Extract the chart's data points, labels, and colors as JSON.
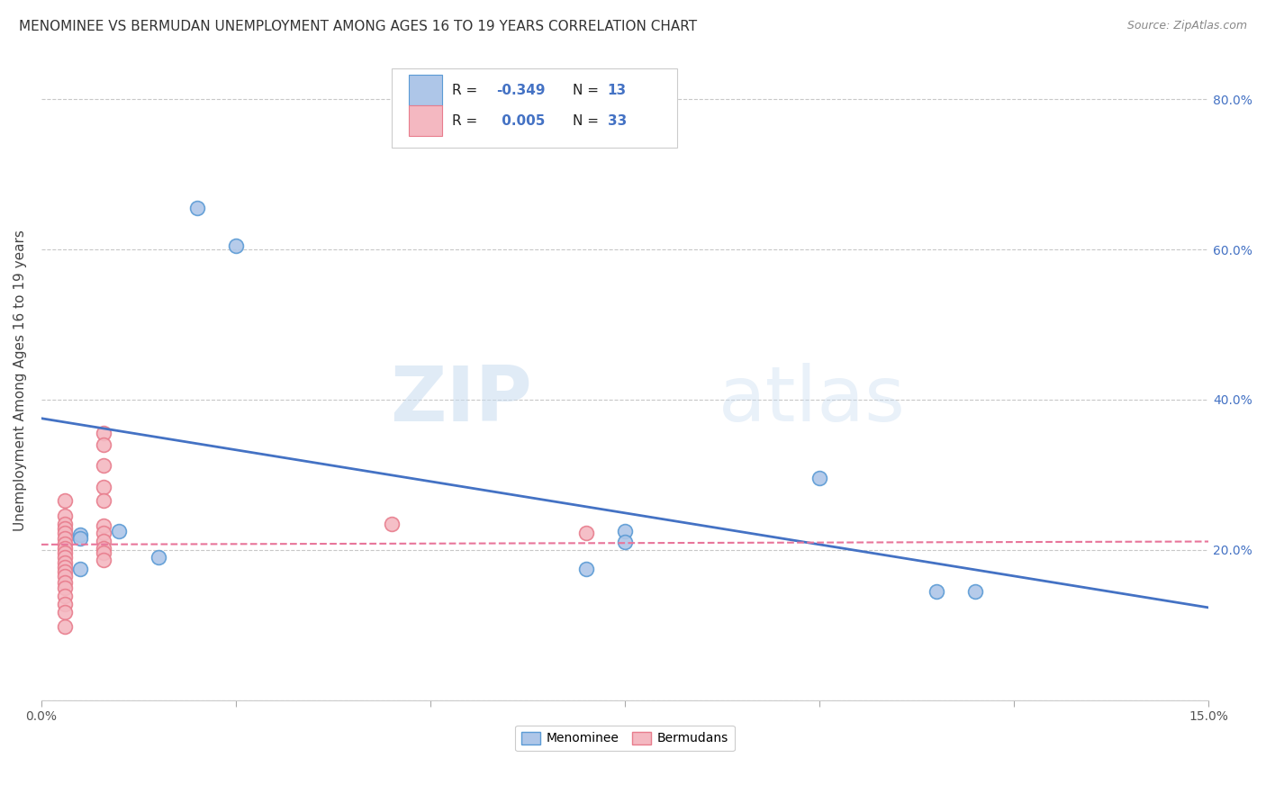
{
  "title": "MENOMINEE VS BERMUDAN UNEMPLOYMENT AMONG AGES 16 TO 19 YEARS CORRELATION CHART",
  "source": "Source: ZipAtlas.com",
  "ylabel": "Unemployment Among Ages 16 to 19 years",
  "xlim": [
    0.0,
    0.15
  ],
  "ylim": [
    0.0,
    0.85
  ],
  "menominee_x": [
    0.01,
    0.015,
    0.02,
    0.025,
    0.005,
    0.005,
    0.005,
    0.07,
    0.075,
    0.1,
    0.115,
    0.075,
    0.12
  ],
  "menominee_y": [
    0.225,
    0.19,
    0.655,
    0.605,
    0.22,
    0.215,
    0.175,
    0.175,
    0.225,
    0.295,
    0.145,
    0.21,
    0.145
  ],
  "bermudans_x": [
    0.003,
    0.003,
    0.003,
    0.003,
    0.003,
    0.003,
    0.003,
    0.003,
    0.003,
    0.003,
    0.003,
    0.003,
    0.003,
    0.003,
    0.003,
    0.003,
    0.003,
    0.003,
    0.003,
    0.003,
    0.008,
    0.008,
    0.008,
    0.008,
    0.008,
    0.008,
    0.008,
    0.008,
    0.008,
    0.008,
    0.008,
    0.045,
    0.07
  ],
  "bermudans_y": [
    0.265,
    0.245,
    0.235,
    0.228,
    0.222,
    0.215,
    0.208,
    0.202,
    0.196,
    0.19,
    0.183,
    0.177,
    0.171,
    0.165,
    0.156,
    0.149,
    0.139,
    0.128,
    0.117,
    0.098,
    0.355,
    0.34,
    0.312,
    0.283,
    0.265,
    0.232,
    0.222,
    0.212,
    0.202,
    0.196,
    0.186,
    0.235,
    0.222
  ],
  "menominee_color": "#AEC6E8",
  "bermudans_color": "#F4B8C1",
  "menominee_edge": "#5B9BD5",
  "bermudans_edge": "#E87D8D",
  "trend_menominee_color": "#4472C4",
  "trend_bermudans_color": "#E8759A",
  "watermark_zip": "ZIP",
  "watermark_atlas": "atlas",
  "menominee_trend_x": [
    0.0,
    0.15
  ],
  "menominee_trend_y": [
    0.375,
    0.123
  ],
  "bermudans_trend_x": [
    0.0,
    0.15
  ],
  "bermudans_trend_y": [
    0.207,
    0.211
  ],
  "grid_color": "#C8C8C8",
  "background_color": "#FFFFFF",
  "title_fontsize": 11,
  "axis_label_fontsize": 11,
  "right_tick_color": "#4472C4",
  "yticks": [
    0.0,
    0.2,
    0.4,
    0.6,
    0.8
  ],
  "yticklabels_right": [
    "",
    "20.0%",
    "40.0%",
    "60.0%",
    "80.0%"
  ],
  "xticks": [
    0.0,
    0.025,
    0.05,
    0.075,
    0.1,
    0.125,
    0.15
  ],
  "xticklabels": [
    "0.0%",
    "",
    "",
    "",
    "",
    "",
    "15.0%"
  ]
}
